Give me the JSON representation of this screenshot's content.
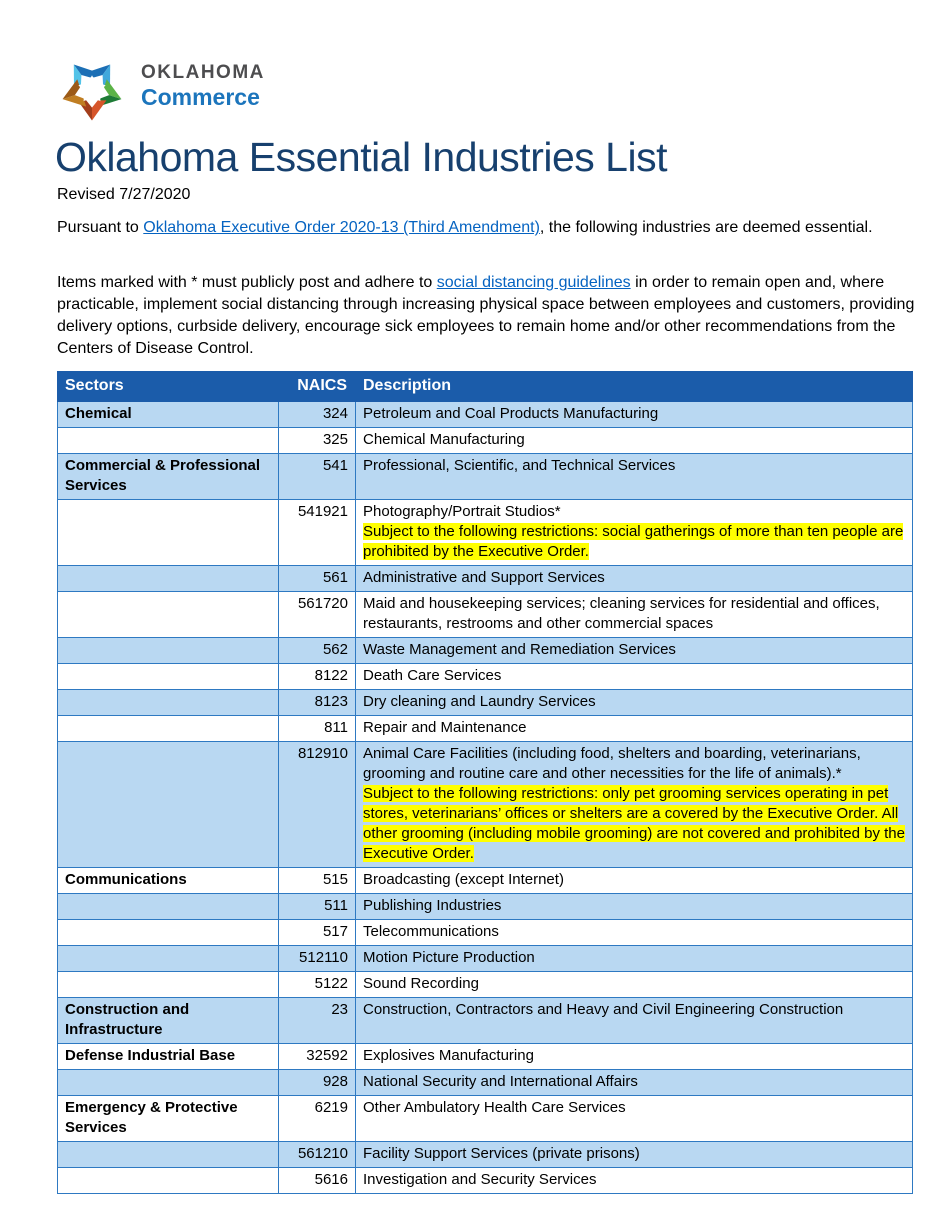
{
  "logo": {
    "brand_top": "OKLAHOMA",
    "brand_bottom": "Commerce"
  },
  "title": "Oklahoma Essential Industries List",
  "revised": "Revised 7/27/2020",
  "intro": {
    "p1_before": "Pursuant to ",
    "p1_link": "Oklahoma Executive Order 2020-13 (Third Amendment)",
    "p1_after": ", the following industries are deemed essential.",
    "p2_before": "Items marked with * must publicly post and adhere to ",
    "p2_link": "social distancing guidelines",
    "p2_after": " in order to remain open and, where practicable, implement social distancing through increasing physical space between employees and customers, providing delivery options, curbside delivery, encourage sick employees to remain home and/or other recommendations from the Centers of Disease Control."
  },
  "table": {
    "headers": [
      "Sectors",
      "NAICS",
      "Description"
    ],
    "rows": [
      {
        "sector": "Chemical",
        "naics": "324",
        "desc": "Petroleum and Coal Products Manufacturing"
      },
      {
        "sector": "",
        "naics": "325",
        "desc": "Chemical Manufacturing"
      },
      {
        "sector": "Commercial & Professional Services",
        "naics": "541",
        "desc": "Professional, Scientific, and Technical Services"
      },
      {
        "sector": "",
        "naics": "541921",
        "desc": "Photography/Portrait Studios*",
        "restriction": "Subject to the following restrictions: social gatherings of more than ten people are prohibited by the Executive Order."
      },
      {
        "sector": "",
        "naics": "561",
        "desc": "Administrative and Support Services"
      },
      {
        "sector": "",
        "naics": "561720",
        "desc": "Maid and housekeeping services; cleaning services for residential and offices, restaurants, restrooms and other commercial spaces"
      },
      {
        "sector": "",
        "naics": "562",
        "desc": "Waste Management and Remediation Services"
      },
      {
        "sector": "",
        "naics": "8122",
        "desc": "Death Care Services"
      },
      {
        "sector": "",
        "naics": "8123",
        "desc": "Dry cleaning and Laundry Services"
      },
      {
        "sector": "",
        "naics": "811",
        "desc": "Repair and Maintenance"
      },
      {
        "sector": "",
        "naics": "812910",
        "desc": "Animal Care Facilities (including food, shelters and boarding, veterinarians, grooming and routine care and other necessities for the life of animals).*",
        "restriction": "Subject to the following restrictions: only pet grooming services operating in pet stores, veterinarians’ offices or shelters are a covered by the Executive Order. All other grooming (including mobile grooming) are not covered and prohibited by the Executive Order."
      },
      {
        "sector": "Communications",
        "naics": "515",
        "desc": "Broadcasting (except Internet)"
      },
      {
        "sector": "",
        "naics": "511",
        "desc": "Publishing Industries"
      },
      {
        "sector": "",
        "naics": "517",
        "desc": "Telecommunications"
      },
      {
        "sector": "",
        "naics": "512110",
        "desc": "Motion Picture Production"
      },
      {
        "sector": "",
        "naics": "5122",
        "desc": "Sound Recording"
      },
      {
        "sector": "Construction and Infrastructure",
        "naics": "23",
        "desc": "Construction, Contractors and Heavy and Civil Engineering Construction"
      },
      {
        "sector": "Defense Industrial Base",
        "naics": "32592",
        "desc": "Explosives Manufacturing"
      },
      {
        "sector": "",
        "naics": "928",
        "desc": "National Security and International Affairs"
      },
      {
        "sector": "Emergency & Protective Services",
        "naics": "6219",
        "desc": "Other Ambulatory Health Care Services"
      },
      {
        "sector": "",
        "naics": "561210",
        "desc": "Facility Support Services (private prisons)"
      },
      {
        "sector": "",
        "naics": "5616",
        "desc": "Investigation and Security Services"
      }
    ]
  },
  "colors": {
    "title": "#17406e",
    "link": "#0563c1",
    "table_header_bg": "#1b5caa",
    "table_band_bg": "#b9d8f2",
    "table_border": "#2e79c2",
    "highlight": "#ffff00",
    "brand_gray": "#4d4d4f",
    "brand_blue": "#1c75bc"
  }
}
